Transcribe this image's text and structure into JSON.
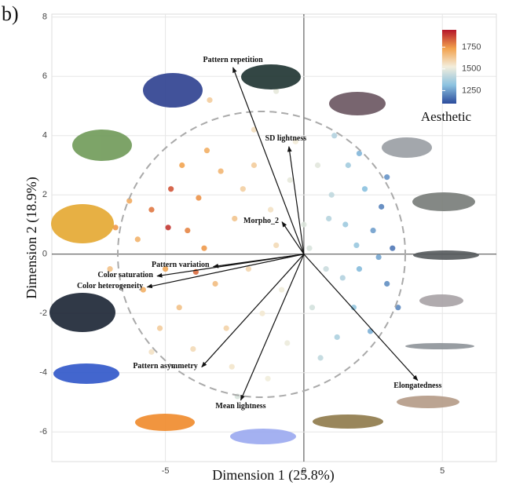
{
  "panel_label": "b)",
  "chart_data": {
    "type": "biplot",
    "x_label": "Dimension 1 (25.8%)",
    "y_label": "Dimension 2 (18.9%)",
    "xlim": [
      -9.1,
      6.95
    ],
    "ylim": [
      -7,
      8.1
    ],
    "xticks": [
      -5,
      0,
      5
    ],
    "yticks": [
      -6,
      -4,
      -2,
      0,
      2,
      4,
      6,
      8
    ],
    "grid": true,
    "colorbar_title": "Aesthetic",
    "colorbar_lim": [
      1100,
      1950
    ],
    "colorbar_ticks": [
      1250,
      1500,
      1750
    ],
    "colorscale": [
      "#2b4c9c",
      "#8cc2e0",
      "#f3eedc",
      "#f2a14c",
      "#b5162a"
    ],
    "points": {
      "x": [
        -5.5,
        -4.8,
        -4.2,
        -5.0,
        -3.8,
        -4.5,
        -3.5,
        -6.0,
        -5.2,
        -3.0,
        -2.5,
        -3.2,
        -4.0,
        -2.8,
        -1.8,
        -2.0,
        -5.8,
        -3.6,
        -4.4,
        -2.2,
        -6.3,
        -4.9,
        -3.9,
        -5.5,
        -2.6,
        -1.2,
        -0.8,
        -1.5,
        -0.5,
        -1.0,
        0,
        0.3,
        -0.3,
        0.5,
        -0.6,
        0.2,
        -1.8,
        0.8,
        -1.3,
        1.0,
        1.5,
        2.0,
        2.5,
        1.8,
        3.0,
        2.2,
        1.2,
        2.8,
        3.2,
        1.6,
        2.4,
        0.9,
        1.4,
        3.4,
        2.0,
        0.6,
        1.9,
        2.7,
        1.1,
        3.0,
        -3.4,
        -1,
        -2.4,
        -7,
        -6.8
      ],
      "y": [
        1.5,
        2.2,
        0.8,
        -0.5,
        1.9,
        -1.8,
        3.5,
        0.5,
        -2.5,
        2.8,
        1.2,
        -1.0,
        -3.2,
        -2.5,
        3.0,
        -0.5,
        -1.2,
        0.2,
        3.0,
        2.2,
        1.8,
        0.9,
        -0.6,
        -3.3,
        -3.8,
        1.5,
        -1.2,
        -2.0,
        2.5,
        0.3,
        1.0,
        -1.8,
        3.8,
        3.0,
        -3.0,
        0.2,
        4.2,
        -0.5,
        -4.2,
        2.0,
        1.0,
        -0.5,
        0.8,
        -1.8,
        -1.0,
        2.2,
        -2.8,
        1.6,
        0.2,
        3.0,
        -2.6,
        1.2,
        -0.8,
        -1.8,
        3.4,
        -3.5,
        0.3,
        -0.1,
        4.0,
        2.6,
        5.2,
        5.5,
        -4.8,
        -0.5,
        0.9
      ],
      "aesthetic": [
        1800,
        1850,
        1780,
        1720,
        1760,
        1650,
        1700,
        1690,
        1620,
        1680,
        1640,
        1660,
        1580,
        1600,
        1620,
        1590,
        1700,
        1750,
        1730,
        1610,
        1710,
        1900,
        1820,
        1560,
        1550,
        1560,
        1520,
        1540,
        1500,
        1580,
        1480,
        1460,
        1530,
        1490,
        1510,
        1470,
        1570,
        1440,
        1520,
        1420,
        1350,
        1300,
        1250,
        1330,
        1220,
        1310,
        1380,
        1200,
        1180,
        1360,
        1280,
        1400,
        1390,
        1210,
        1290,
        1420,
        1340,
        1260,
        1390,
        1230,
        1620,
        1500,
        1470,
        1650,
        1750
      ]
    },
    "loadings": [
      {
        "name": "Pattern repetition",
        "x": -2.56,
        "y": 6.3
      },
      {
        "name": "SD lightness",
        "x": -0.54,
        "y": 3.63
      },
      {
        "name": "Morpho_2",
        "x": -0.79,
        "y": 1.09
      },
      {
        "name": "Pattern variation",
        "x": -3.27,
        "y": -0.42
      },
      {
        "name": "Color saturation",
        "x": -5.3,
        "y": -0.74
      },
      {
        "name": "Color heterogeneity",
        "x": -5.66,
        "y": -1.11
      },
      {
        "name": "Pattern asymmetry",
        "x": -3.69,
        "y": -3.81
      },
      {
        "name": "Mean lightness",
        "x": -2.28,
        "y": -4.93
      },
      {
        "name": "Elongatedness",
        "x": 4.11,
        "y": -4.26
      }
    ]
  }
}
